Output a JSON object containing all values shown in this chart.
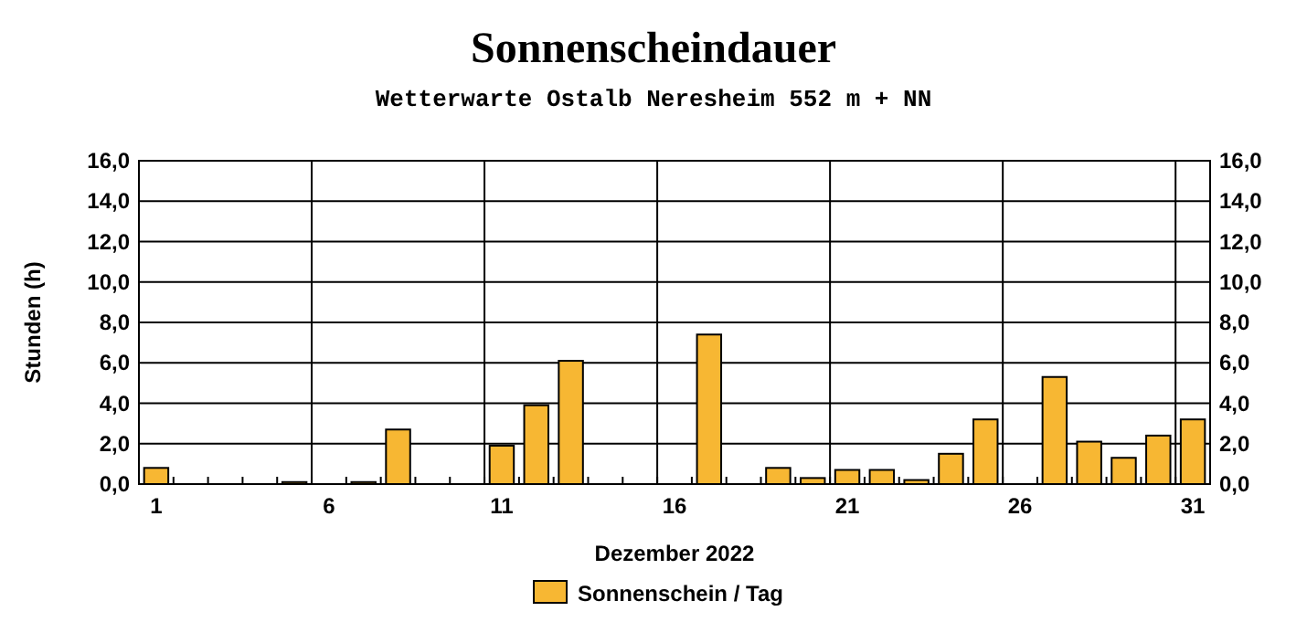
{
  "chart_data": {
    "type": "bar",
    "title": "Sonnenscheindauer",
    "subtitle": "Wetterwarte Ostalb Neresheim 552 m + NN",
    "xlabel": "Dezember 2022",
    "ylabel": "Stunden  (h)",
    "categories": [
      "1",
      null,
      null,
      null,
      null,
      "6",
      null,
      null,
      null,
      null,
      "11",
      null,
      null,
      null,
      null,
      "16",
      null,
      null,
      null,
      null,
      "21",
      null,
      null,
      null,
      null,
      "26",
      null,
      null,
      null,
      null,
      "31"
    ],
    "series": [
      {
        "name": "Sonnenschein / Tag",
        "color": "#f7b733",
        "values": [
          0.8,
          0,
          0,
          0,
          0.1,
          0,
          0.1,
          2.7,
          0,
          0,
          1.9,
          3.9,
          6.1,
          0,
          0,
          0,
          7.4,
          0,
          0.8,
          0.3,
          0.7,
          0.7,
          0.2,
          1.5,
          3.2,
          0,
          5.3,
          2.1,
          1.3,
          2.4,
          3.2
        ]
      }
    ],
    "ylim": [
      0,
      16
    ],
    "yticks": [
      {
        "value": 0,
        "label": "0,0"
      },
      {
        "value": 2,
        "label": "2,0"
      },
      {
        "value": 4,
        "label": "4,0"
      },
      {
        "value": 6,
        "label": "6,0"
      },
      {
        "value": 8,
        "label": "8,0"
      },
      {
        "value": 10,
        "label": "10,0"
      },
      {
        "value": 12,
        "label": "12,0"
      },
      {
        "value": 14,
        "label": "14,0"
      },
      {
        "value": 16,
        "label": "16,0"
      }
    ],
    "y2lim": [
      0,
      16
    ],
    "y2ticks": [
      {
        "value": 0,
        "label": "0,0"
      },
      {
        "value": 2,
        "label": "2,0"
      },
      {
        "value": 4,
        "label": "4,0"
      },
      {
        "value": 6,
        "label": "6,0"
      },
      {
        "value": 8,
        "label": "8,0"
      },
      {
        "value": 10,
        "label": "10,0"
      },
      {
        "value": 12,
        "label": "12,0"
      },
      {
        "value": 14,
        "label": "14,0"
      },
      {
        "value": 16,
        "label": "16,0"
      }
    ],
    "grid": true,
    "legend": "bottom"
  }
}
